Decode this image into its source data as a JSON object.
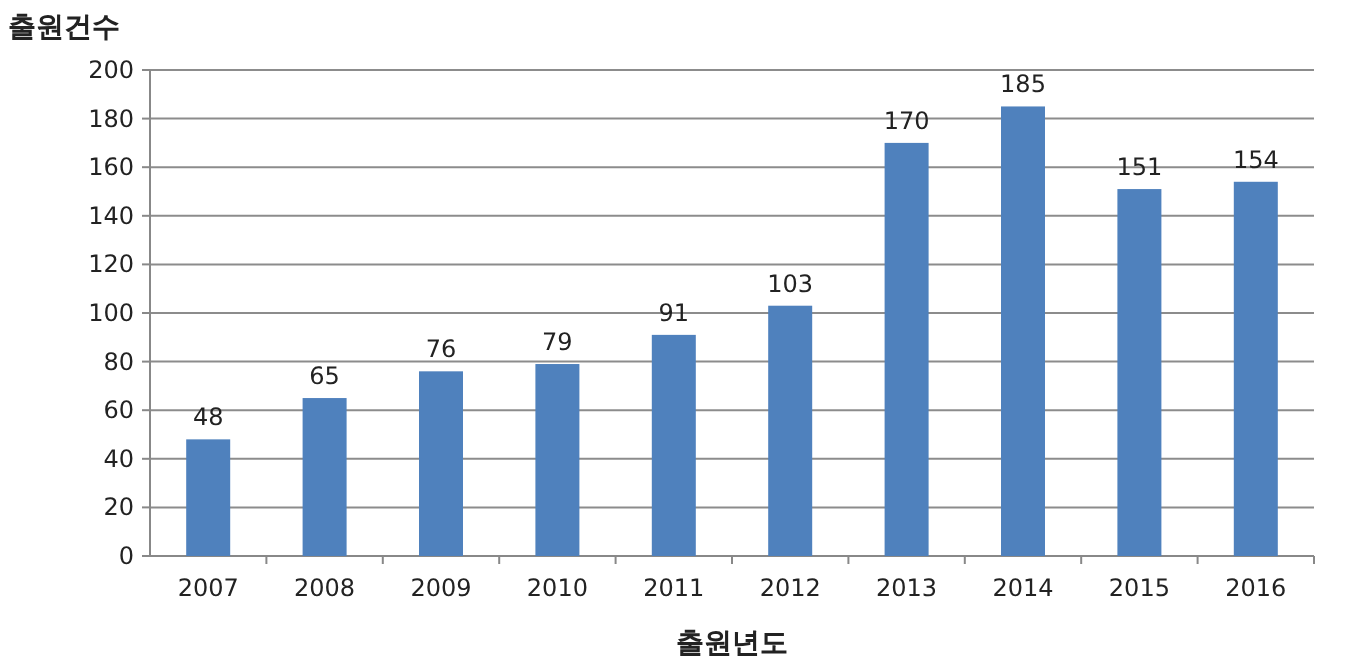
{
  "chart_data": {
    "type": "bar",
    "ylabel": "출원건수",
    "xlabel": "출원년도",
    "categories": [
      "2007",
      "2008",
      "2009",
      "2010",
      "2011",
      "2012",
      "2013",
      "2014",
      "2015",
      "2016"
    ],
    "values": [
      48,
      65,
      76,
      79,
      91,
      103,
      170,
      185,
      151,
      154
    ],
    "color": "#4f81bd",
    "ylim": [
      0,
      200
    ],
    "yticks": [
      0,
      20,
      40,
      60,
      80,
      100,
      120,
      140,
      160,
      180,
      200
    ],
    "grid": "y",
    "data_labels": true
  }
}
